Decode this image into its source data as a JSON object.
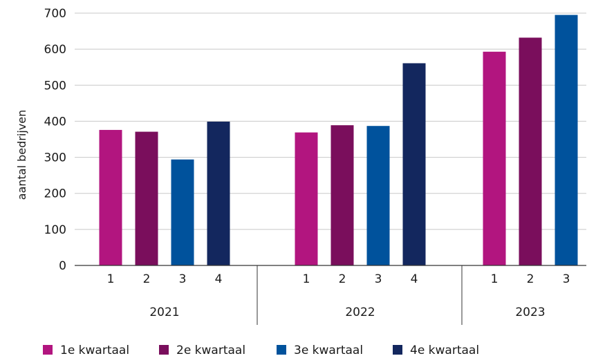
{
  "chart_data": {
    "type": "bar",
    "ylabel": "aantal bedrijven",
    "ylim": [
      0,
      700
    ],
    "yticks": [
      "0",
      "100",
      "200",
      "300",
      "400",
      "500",
      "600",
      "700"
    ],
    "grid": true,
    "legend_position": "bottom",
    "groups": [
      {
        "year": "2021",
        "bars": [
          {
            "quarter": "1",
            "series": 0,
            "value": 376
          },
          {
            "quarter": "2",
            "series": 1,
            "value": 371
          },
          {
            "quarter": "3",
            "series": 2,
            "value": 294
          },
          {
            "quarter": "4",
            "series": 3,
            "value": 399
          }
        ]
      },
      {
        "year": "2022",
        "bars": [
          {
            "quarter": "1",
            "series": 0,
            "value": 369
          },
          {
            "quarter": "2",
            "series": 1,
            "value": 389
          },
          {
            "quarter": "3",
            "series": 2,
            "value": 387
          },
          {
            "quarter": "4",
            "series": 3,
            "value": 561
          }
        ]
      },
      {
        "year": "2023",
        "bars": [
          {
            "quarter": "1",
            "series": 0,
            "value": 593
          },
          {
            "quarter": "2",
            "series": 1,
            "value": 632
          },
          {
            "quarter": "3",
            "series": 2,
            "value": 695
          }
        ]
      }
    ],
    "series": [
      {
        "name": "1e kwartaal",
        "color": "#b2157f"
      },
      {
        "name": "2e kwartaal",
        "color": "#7a0e5c"
      },
      {
        "name": "3e kwartaal",
        "color": "#00529c"
      },
      {
        "name": "4e kwartaal",
        "color": "#13275e"
      }
    ]
  }
}
